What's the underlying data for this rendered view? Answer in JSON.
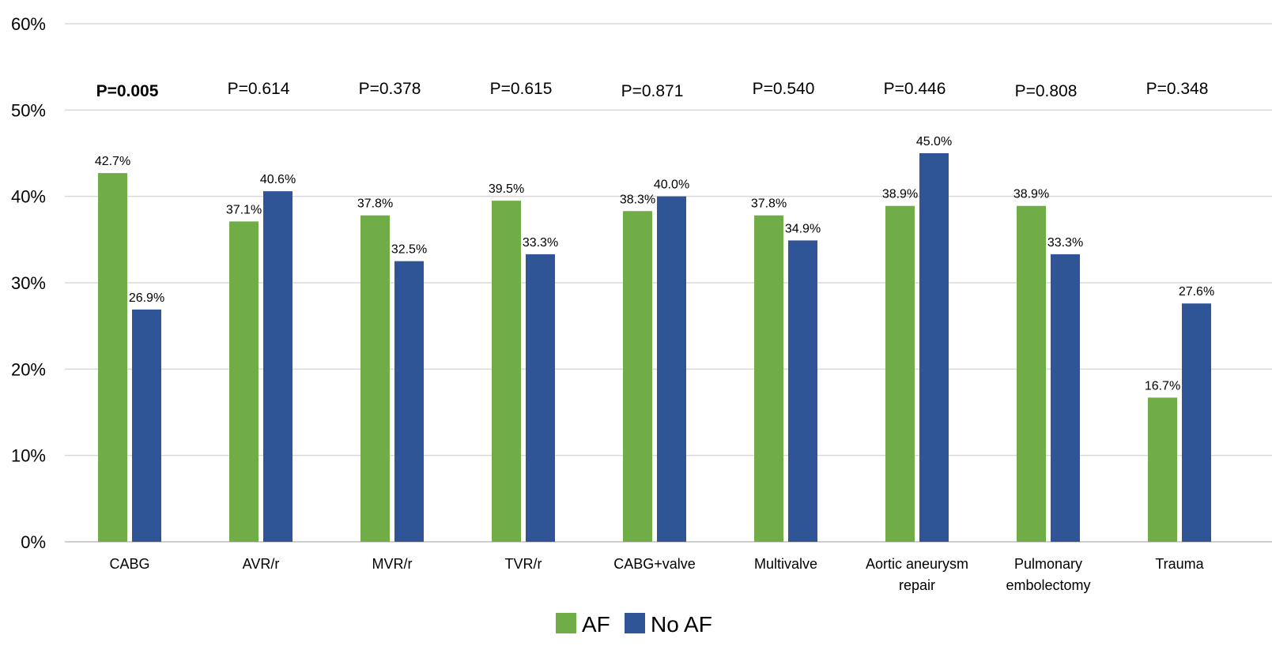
{
  "chart_data": {
    "type": "bar",
    "title": "",
    "xlabel": "",
    "ylabel": "",
    "ylim": [
      0,
      60
    ],
    "y_ticks": [
      "0%",
      "10%",
      "20%",
      "30%",
      "40%",
      "50%",
      "60%"
    ],
    "grid": true,
    "legend_position": "bottom",
    "categories": [
      [
        "CABG"
      ],
      [
        "AVR/r"
      ],
      [
        "MVR/r"
      ],
      [
        "TVR/r"
      ],
      [
        "CABG+valve"
      ],
      [
        "Multivalve"
      ],
      [
        "Aortic aneurysm",
        "repair"
      ],
      [
        "Pulmonary",
        "embolectomy"
      ],
      [
        "Trauma"
      ]
    ],
    "series": [
      {
        "name": "AF",
        "color": "#70ad47",
        "values": [
          42.7,
          37.1,
          37.8,
          39.5,
          38.3,
          37.8,
          38.9,
          38.9,
          16.7
        ],
        "labels": [
          "42.7%",
          "37.1%",
          "37.8%",
          "39.5%",
          "38.3%",
          "37.8%",
          "38.9%",
          "38.9%",
          "16.7%"
        ]
      },
      {
        "name": "No AF",
        "color": "#2f5597",
        "values": [
          26.9,
          40.6,
          32.5,
          33.3,
          40.0,
          34.9,
          45.0,
          33.3,
          27.6
        ],
        "labels": [
          "26.9%",
          "40.6%",
          "32.5%",
          "33.3%",
          "40.0%",
          "34.9%",
          "45.0%",
          "33.3%",
          "27.6%"
        ]
      }
    ],
    "annotations": [
      {
        "text": "P=0.005",
        "bold": true
      },
      {
        "text": "P=0.614",
        "bold": false
      },
      {
        "text": "P=0.378",
        "bold": false
      },
      {
        "text": "P=0.615",
        "bold": false
      },
      {
        "text": "P=0.871",
        "bold": false
      },
      {
        "text": "P=0.540",
        "bold": false
      },
      {
        "text": "P=0.446",
        "bold": false
      },
      {
        "text": "P=0.808",
        "bold": false
      },
      {
        "text": "P=0.348",
        "bold": false
      }
    ],
    "gridline_color": "#d9d9d9"
  }
}
